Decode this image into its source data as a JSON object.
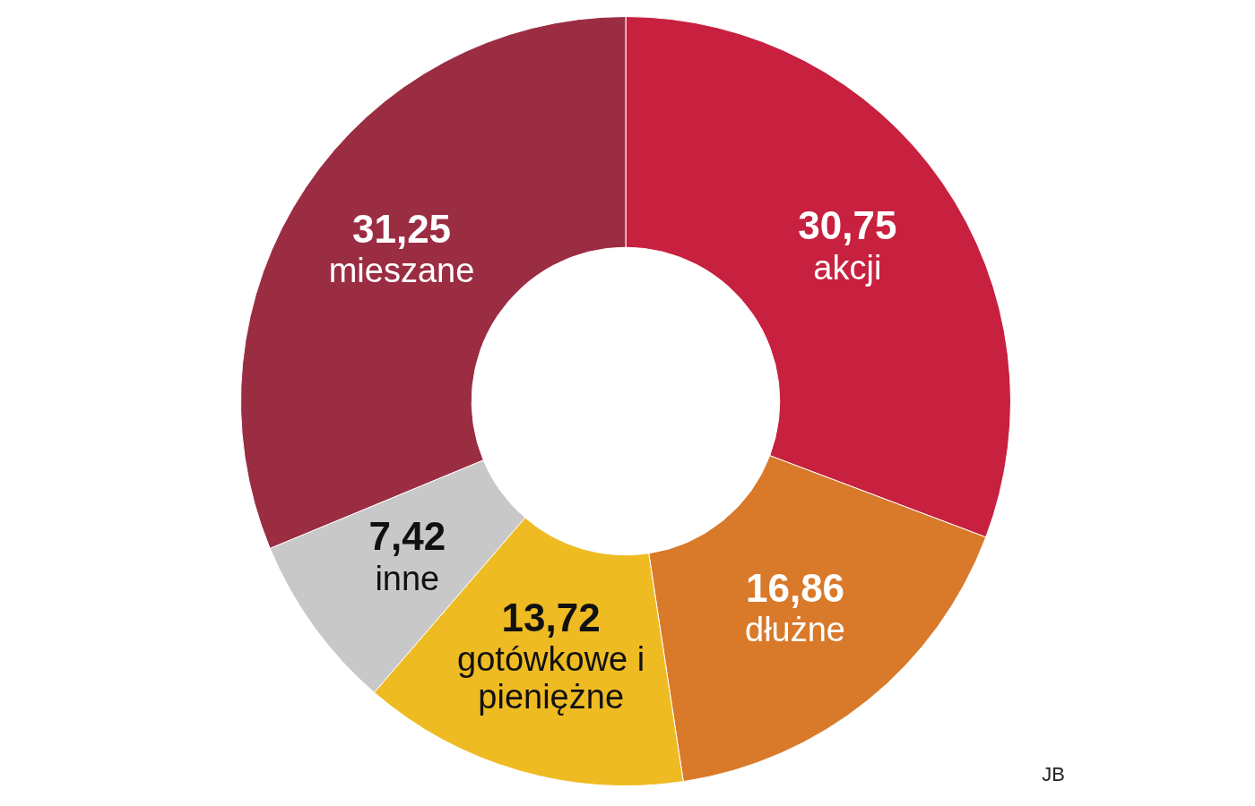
{
  "chart_data": {
    "type": "donut",
    "categories": [
      "akcji",
      "dłużne",
      "gotówkowe i pieniężne",
      "inne",
      "mieszane"
    ],
    "values": [
      30.75,
      16.86,
      13.72,
      7.42,
      31.25
    ],
    "value_labels": [
      "30,75",
      "16,86",
      "13,72",
      "7,42",
      "31,25"
    ],
    "colors": [
      "#c8203f",
      "#d9792a",
      "#efbb23",
      "#c8c8c8",
      "#9b2d43"
    ],
    "annotations": [
      "JB"
    ]
  }
}
